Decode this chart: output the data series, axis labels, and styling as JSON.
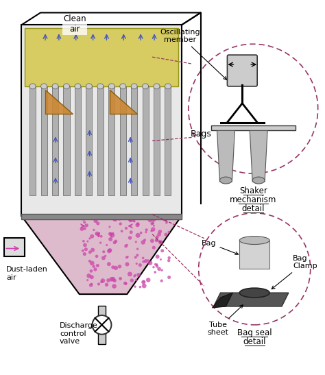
{
  "title": "",
  "bg_color": "#ffffff",
  "labels": {
    "clean_air": "Clean\nair",
    "oscillating_member": "Oscillating\nmember",
    "bags": "Bags",
    "dust_laden_air": "Dust-laden\nair",
    "discharge_control_valve": "Discharge\ncontrol\nvalve",
    "shaker_mechanism_detail_lines": [
      "Shaker",
      "mechanism",
      "detail"
    ],
    "bag_seal_detail_lines": [
      "Bag seal",
      "detail"
    ],
    "bag": "Bag",
    "bag_clamp": "Bag\nClamp",
    "tube_sheet": "Tube\nsheet"
  },
  "colors": {
    "main_housing_fill": "#e8e8e8",
    "yellow_top": "#d4c84a",
    "bag_color": "#888888",
    "dust_color": "#cc44aa",
    "detail_circle_edge": "#993366",
    "arrow_blue": "#4455bb",
    "arrow_pink": "#cc44aa",
    "orange_baffle": "#cc8833",
    "hopper_fill": "#ddbbcc",
    "text_color": "#000000",
    "valve_color": "#333333",
    "detail_line": "#993366"
  },
  "figure_size": [
    4.74,
    5.47
  ],
  "dpi": 100
}
